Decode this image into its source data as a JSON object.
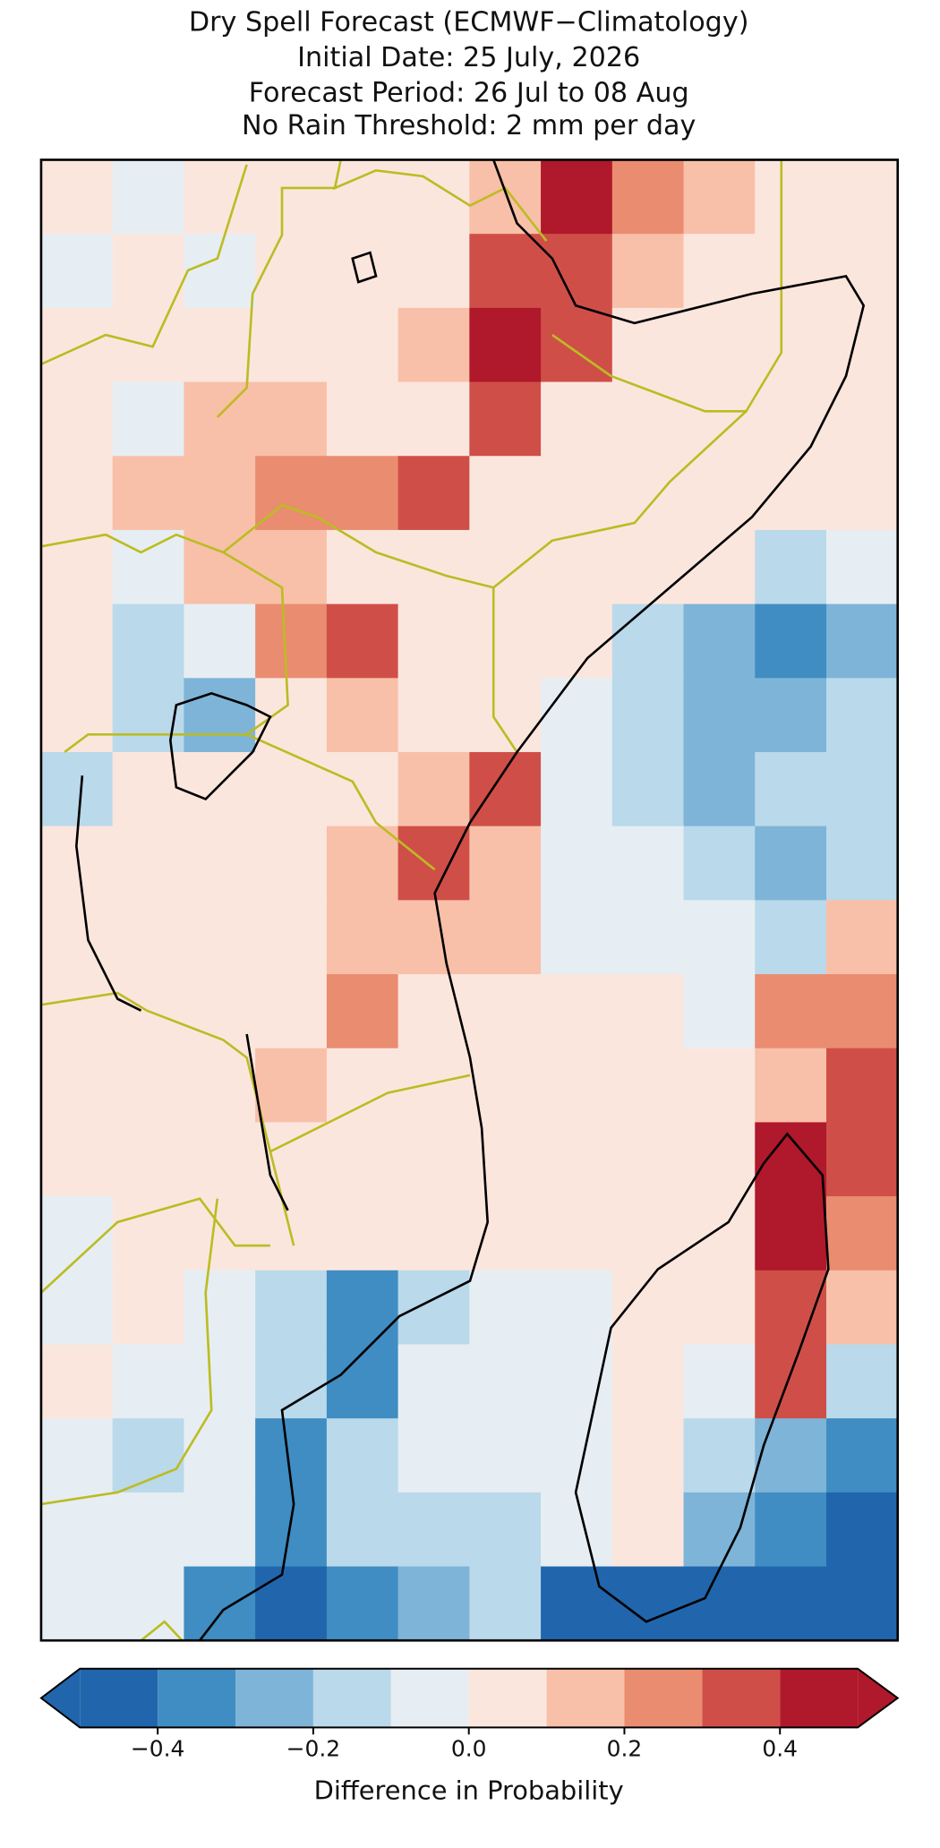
{
  "title": [
    "Dry Spell Forecast (ECMWF−Climatology)",
    "Initial Date: 25 July, 2026",
    "Forecast Period: 26 Jul to 08 Aug",
    "No Rain Threshold: 2 mm per day"
  ],
  "map": {
    "grid": [
      [
        0.05,
        -0.05,
        0.05,
        0.05,
        0.05,
        0.05,
        0.15,
        0.45,
        0.25,
        0.15,
        0.05,
        0.05
      ],
      [
        -0.05,
        0.05,
        -0.05,
        0.05,
        0.05,
        0.05,
        0.35,
        0.35,
        0.15,
        0.05,
        0.05,
        0.05
      ],
      [
        0.05,
        0.05,
        0.05,
        0.05,
        0.05,
        0.15,
        0.45,
        0.35,
        0.05,
        0.05,
        0.05,
        0.05
      ],
      [
        0.05,
        -0.05,
        0.15,
        0.15,
        0.05,
        0.05,
        0.35,
        0.05,
        0.05,
        0.05,
        0.05,
        0.05
      ],
      [
        0.05,
        0.15,
        0.15,
        0.25,
        0.25,
        0.35,
        0.05,
        0.05,
        0.05,
        0.05,
        0.05,
        0.05
      ],
      [
        0.05,
        -0.05,
        0.15,
        0.15,
        0.05,
        0.05,
        0.05,
        0.05,
        0.05,
        0.05,
        -0.15,
        -0.05
      ],
      [
        0.05,
        -0.15,
        -0.05,
        0.25,
        0.35,
        0.05,
        0.05,
        0.05,
        -0.15,
        -0.25,
        -0.35,
        -0.25
      ],
      [
        0.05,
        -0.15,
        -0.25,
        0.05,
        0.15,
        0.05,
        0.05,
        -0.05,
        -0.15,
        -0.25,
        -0.25,
        -0.15
      ],
      [
        -0.15,
        0.05,
        0.05,
        0.05,
        0.05,
        0.15,
        0.35,
        -0.05,
        -0.15,
        -0.25,
        -0.15,
        -0.15
      ],
      [
        0.05,
        0.05,
        0.05,
        0.05,
        0.15,
        0.35,
        0.15,
        -0.05,
        -0.05,
        -0.15,
        -0.25,
        -0.15
      ],
      [
        0.05,
        0.05,
        0.05,
        0.05,
        0.15,
        0.15,
        0.15,
        -0.05,
        -0.05,
        -0.05,
        -0.15,
        0.15
      ],
      [
        0.05,
        0.05,
        0.05,
        0.05,
        0.25,
        0.05,
        0.05,
        0.05,
        0.05,
        -0.05,
        0.25,
        0.25
      ],
      [
        0.05,
        0.05,
        0.05,
        0.15,
        0.05,
        0.05,
        0.05,
        0.05,
        0.05,
        0.05,
        0.15,
        0.35
      ],
      [
        0.05,
        0.05,
        0.05,
        0.05,
        0.05,
        0.05,
        0.05,
        0.05,
        0.05,
        0.05,
        0.45,
        0.35
      ],
      [
        -0.05,
        0.05,
        0.05,
        0.05,
        0.05,
        0.05,
        0.05,
        0.05,
        0.05,
        0.05,
        0.45,
        0.25
      ],
      [
        -0.05,
        0.05,
        -0.05,
        -0.15,
        -0.35,
        -0.15,
        -0.05,
        -0.05,
        0.05,
        0.05,
        0.35,
        0.15
      ],
      [
        0.05,
        -0.05,
        -0.05,
        -0.15,
        -0.35,
        -0.05,
        -0.05,
        -0.05,
        0.05,
        -0.05,
        0.35,
        -0.15
      ],
      [
        -0.05,
        -0.15,
        -0.05,
        -0.35,
        -0.15,
        -0.05,
        -0.05,
        -0.05,
        0.05,
        -0.15,
        -0.25,
        -0.35
      ],
      [
        -0.05,
        -0.05,
        -0.05,
        -0.35,
        -0.15,
        -0.15,
        -0.15,
        -0.05,
        0.05,
        -0.25,
        -0.35,
        -0.45
      ],
      [
        -0.05,
        -0.05,
        -0.35,
        -0.45,
        -0.35,
        -0.25,
        -0.15,
        -0.45,
        -0.45,
        -0.45,
        -0.45,
        -0.45
      ]
    ]
  },
  "colorbar": {
    "levels": [
      -0.5,
      -0.4,
      -0.3,
      -0.2,
      -0.1,
      0,
      0.1,
      0.2,
      0.3,
      0.4,
      0.5
    ],
    "colors": [
      "#2166ac",
      "#3f8dc2",
      "#7eb4d8",
      "#bad9ea",
      "#e6eef3",
      "#fbe6de",
      "#f8c0a8",
      "#ea8c70",
      "#cf4f48",
      "#b0182b"
    ],
    "extend": "both",
    "ticks": [
      {
        "value": -0.4,
        "label": "−0.4"
      },
      {
        "value": -0.2,
        "label": "−0.2"
      },
      {
        "value": 0,
        "label": "0.0"
      },
      0.2,
      0.4
    ],
    "label": "Difference in Probability"
  }
}
